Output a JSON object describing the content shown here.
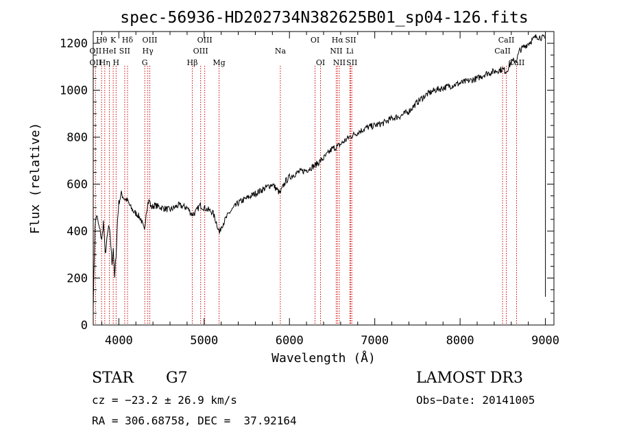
{
  "chart_data": {
    "type": "line",
    "title": "spec-56936-HD202734N382625B01_sp04-126.fits",
    "xlabel": "Wavelength (Å)",
    "ylabel": "Flux (relative)",
    "xlim": [
      3700,
      9100
    ],
    "ylim": [
      0,
      1250
    ],
    "x_ticks": [
      4000,
      5000,
      6000,
      7000,
      8000,
      9000
    ],
    "y_ticks": [
      0,
      200,
      400,
      600,
      800,
      1000,
      1200
    ],
    "grid": false,
    "series": [
      {
        "x": [
          3700,
          3720,
          3740,
          3760,
          3780,
          3800,
          3820,
          3840,
          3860,
          3880,
          3900,
          3920,
          3935,
          3950,
          3968,
          3985,
          4000,
          4030,
          4060,
          4100,
          4140,
          4180,
          4220,
          4260,
          4300,
          4320,
          4340,
          4360,
          4380,
          4420,
          4500,
          4600,
          4700,
          4800,
          4860,
          4900,
          4950,
          5000,
          5050,
          5100,
          5150,
          5180,
          5200,
          5250,
          5300,
          5400,
          5500,
          5600,
          5700,
          5800,
          5890,
          5950,
          6000,
          6100,
          6200,
          6300,
          6400,
          6500,
          6563,
          6600,
          6700,
          6800,
          6900,
          7000,
          7100,
          7200,
          7300,
          7400,
          7500,
          7600,
          7700,
          7800,
          7900,
          8000,
          8100,
          8200,
          8300,
          8400,
          8500,
          8542,
          8600,
          8662,
          8700,
          8800,
          8900,
          9000
        ],
        "y": [
          80,
          420,
          470,
          430,
          400,
          360,
          440,
          300,
          360,
          420,
          380,
          260,
          330,
          200,
          300,
          450,
          520,
          560,
          540,
          530,
          500,
          480,
          470,
          450,
          400,
          480,
          520,
          530,
          500,
          510,
          500,
          490,
          510,
          500,
          470,
          480,
          510,
          500,
          490,
          480,
          430,
          390,
          420,
          450,
          480,
          520,
          540,
          560,
          580,
          600,
          560,
          610,
          630,
          650,
          660,
          680,
          710,
          750,
          760,
          770,
          800,
          820,
          840,
          850,
          860,
          880,
          890,
          910,
          950,
          980,
          1000,
          1010,
          1020,
          1030,
          1040,
          1050,
          1070,
          1080,
          1090,
          1080,
          1120,
          1130,
          1170,
          1200,
          1230,
          1220
        ]
      }
    ],
    "spectral_lines": [
      {
        "name": "Hθ",
        "wavelength": 3798,
        "row": 0
      },
      {
        "name": "OII",
        "wavelength": 3727,
        "row": 1
      },
      {
        "name": "OII",
        "wavelength": 3727,
        "row": 2
      },
      {
        "name": "Hη",
        "wavelength": 3835,
        "row": 2
      },
      {
        "name": "HeI",
        "wavelength": 3889,
        "row": 1
      },
      {
        "name": "K",
        "wavelength": 3934,
        "row": 0
      },
      {
        "name": "SII",
        "wavelength": 4069,
        "row": 1
      },
      {
        "name": "H",
        "wavelength": 3968,
        "row": 2
      },
      {
        "name": "Hδ",
        "wavelength": 4102,
        "row": 0
      },
      {
        "name": "OIII",
        "wavelength": 4363,
        "row": 0
      },
      {
        "name": "Hγ",
        "wavelength": 4340,
        "row": 1
      },
      {
        "name": "G",
        "wavelength": 4304,
        "row": 2
      },
      {
        "name": "OIII",
        "wavelength": 5007,
        "row": 0
      },
      {
        "name": "OIII",
        "wavelength": 4959,
        "row": 1
      },
      {
        "name": "Hβ",
        "wavelength": 4861,
        "row": 2
      },
      {
        "name": "Mg",
        "wavelength": 5175,
        "row": 2
      },
      {
        "name": "Na",
        "wavelength": 5893,
        "row": 1
      },
      {
        "name": "OI",
        "wavelength": 6300,
        "row": 0
      },
      {
        "name": "OI",
        "wavelength": 6364,
        "row": 2
      },
      {
        "name": "Hα",
        "wavelength": 6563,
        "row": 0
      },
      {
        "name": "NII",
        "wavelength": 6548,
        "row": 1
      },
      {
        "name": "NII",
        "wavelength": 6584,
        "row": 2
      },
      {
        "name": "SII",
        "wavelength": 6717,
        "row": 0
      },
      {
        "name": "Li",
        "wavelength": 6708,
        "row": 1
      },
      {
        "name": "SII",
        "wavelength": 6731,
        "row": 2
      },
      {
        "name": "CaII",
        "wavelength": 8542,
        "row": 0
      },
      {
        "name": "CaII",
        "wavelength": 8498,
        "row": 1
      },
      {
        "name": "CaII",
        "wavelength": 8662,
        "row": 2
      }
    ],
    "marker_lines": [
      3727,
      3798,
      3835,
      3889,
      3934,
      3968,
      4069,
      4102,
      4304,
      4340,
      4363,
      4861,
      4959,
      5007,
      5175,
      5893,
      6300,
      6364,
      6548,
      6563,
      6584,
      6708,
      6717,
      6731,
      8498,
      8542,
      8662
    ],
    "line_color": "#000000",
    "marker_color": "#cc0000"
  },
  "info": {
    "object_class": "STAR",
    "subclass": "G7",
    "survey": "LAMOST DR3",
    "velocity": "cz = −23.2 ± 26.9 km/s",
    "obs_date": "Obs−Date: 20141005",
    "coords": "RA = 306.68758, DEC =  37.92164"
  }
}
